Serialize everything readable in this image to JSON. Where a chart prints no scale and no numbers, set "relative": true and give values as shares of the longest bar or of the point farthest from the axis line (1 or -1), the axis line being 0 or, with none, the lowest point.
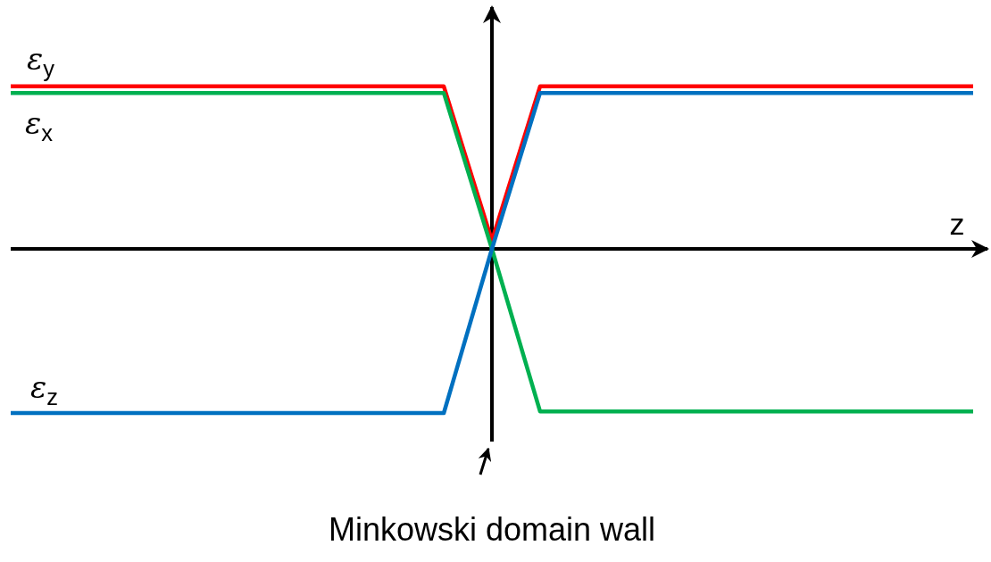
{
  "chart_data": {
    "type": "line",
    "relative": true,
    "xlabel": "z",
    "categories": [
      null,
      null,
      null,
      null,
      null,
      null,
      null,
      null,
      null,
      null,
      null,
      null,
      null,
      null,
      null,
      null,
      null,
      null,
      null,
      null,
      null
    ],
    "series": [
      {
        "name": "ε$_{y}$",
        "color": "#ff0000",
        "values": [
          0.99,
          0.99,
          0.99,
          0.99,
          0.99,
          0.99,
          0.99,
          0.99,
          0.99,
          0.99,
          0.05,
          0.99,
          0.99,
          0.99,
          0.99,
          0.99,
          0.99,
          0.99,
          0.99,
          0.99,
          0.99
        ]
      },
      {
        "name": "ε$_{x}$",
        "color": "#00b050",
        "values": [
          0.95,
          0.95,
          0.95,
          0.95,
          0.95,
          0.95,
          0.95,
          0.95,
          0.95,
          0.95,
          0,
          -0.99,
          -0.99,
          -0.99,
          -0.99,
          -0.99,
          -0.99,
          -0.99,
          -0.99,
          -0.99,
          -0.99
        ]
      },
      {
        "name": "ε$_{z}$",
        "color": "#0070c0",
        "values": [
          -1,
          -1,
          -1,
          -1,
          -1,
          -1,
          -1,
          -1,
          -1,
          -1,
          0,
          0.95,
          0.95,
          0.95,
          0.95,
          0.95,
          0.95,
          0.95,
          0.95,
          0.95,
          0.95
        ]
      }
    ],
    "annotations": [
      "Minkowski domain wall"
    ]
  }
}
